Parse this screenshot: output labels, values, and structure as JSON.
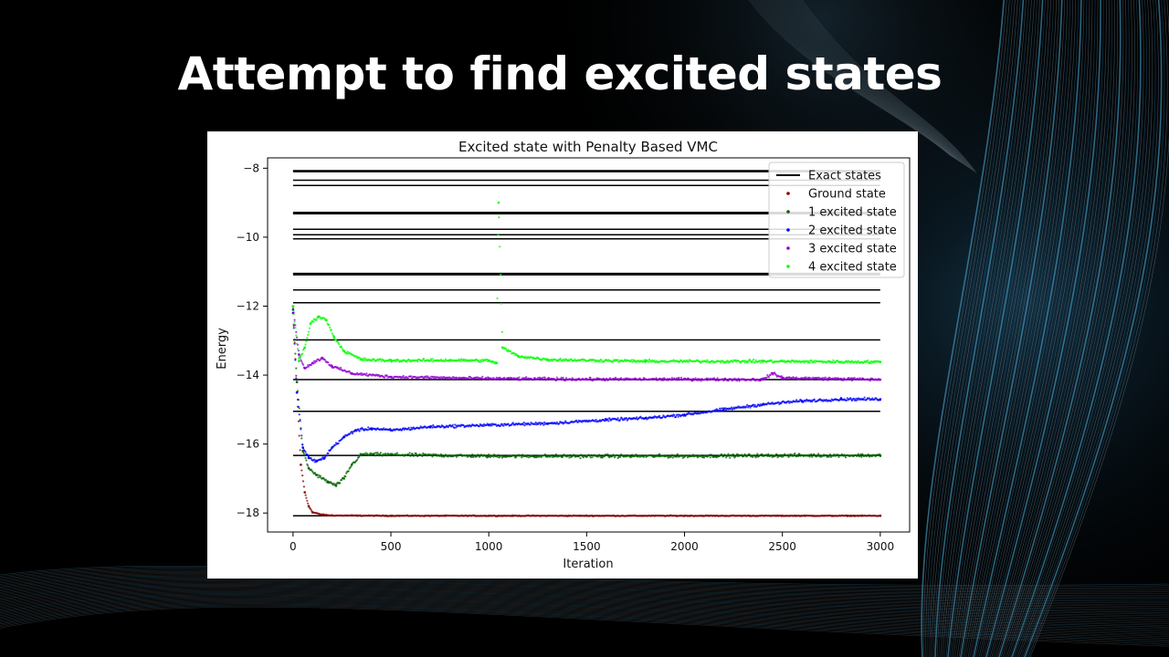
{
  "slide": {
    "title": "Attempt to find excited states"
  },
  "colors": {
    "background": "#000000",
    "title_text": "#ffffff",
    "panel": "#ffffff",
    "exact": "#000000",
    "ground": "#8b0000",
    "excited1": "#006400",
    "excited2": "#0000ff",
    "excited3": "#9400d3",
    "excited4": "#00ff00"
  },
  "chart_data": {
    "type": "scatter",
    "title": "Excited state with Penalty Based VMC",
    "xlabel": "Iteration",
    "ylabel": "Energy",
    "xlim": [
      -130,
      3150
    ],
    "ylim": [
      -18.55,
      -7.7
    ],
    "xticks": [
      0,
      500,
      1000,
      1500,
      2000,
      2500,
      3000
    ],
    "yticks": [
      -8,
      -10,
      -12,
      -14,
      -16,
      -18
    ],
    "grid": false,
    "legend_position": "top-right",
    "exact_states": {
      "name": "Exact states",
      "color": "#000000",
      "x_range": [
        0,
        3000
      ],
      "energies": [
        -8.07,
        -8.1,
        -8.35,
        -8.5,
        -9.28,
        -9.32,
        -9.77,
        -9.93,
        -10.05,
        -11.05,
        -11.09,
        -11.53,
        -11.9,
        -12.98,
        -14.13,
        -15.05,
        -16.33,
        -18.08
      ]
    },
    "series": [
      {
        "name": "Ground state",
        "color": "#8b0000",
        "points": [
          [
            0,
            -12.1
          ],
          [
            20,
            -14.5
          ],
          [
            40,
            -16.6
          ],
          [
            60,
            -17.4
          ],
          [
            80,
            -17.8
          ],
          [
            100,
            -17.98
          ],
          [
            150,
            -18.05
          ],
          [
            200,
            -18.07
          ],
          [
            500,
            -18.08
          ],
          [
            1000,
            -18.08
          ],
          [
            1500,
            -18.08
          ],
          [
            2000,
            -18.08
          ],
          [
            2500,
            -18.08
          ],
          [
            3000,
            -18.08
          ]
        ]
      },
      {
        "name": "1 excited state",
        "color": "#006400",
        "points": [
          [
            0,
            -12.1
          ],
          [
            20,
            -14.2
          ],
          [
            50,
            -16.2
          ],
          [
            80,
            -16.7
          ],
          [
            120,
            -16.9
          ],
          [
            180,
            -17.1
          ],
          [
            220,
            -17.2
          ],
          [
            260,
            -17.0
          ],
          [
            300,
            -16.6
          ],
          [
            350,
            -16.3
          ],
          [
            400,
            -16.3
          ],
          [
            1000,
            -16.35
          ],
          [
            1500,
            -16.35
          ],
          [
            2000,
            -16.35
          ],
          [
            2500,
            -16.33
          ],
          [
            3000,
            -16.33
          ]
        ]
      },
      {
        "name": "2 excited state",
        "color": "#0000ff",
        "points": [
          [
            0,
            -12.2
          ],
          [
            20,
            -14.5
          ],
          [
            50,
            -16.1
          ],
          [
            80,
            -16.4
          ],
          [
            120,
            -16.5
          ],
          [
            160,
            -16.4
          ],
          [
            200,
            -16.1
          ],
          [
            260,
            -15.8
          ],
          [
            320,
            -15.6
          ],
          [
            400,
            -15.55
          ],
          [
            500,
            -15.6
          ],
          [
            700,
            -15.5
          ],
          [
            1000,
            -15.45
          ],
          [
            1300,
            -15.4
          ],
          [
            1600,
            -15.3
          ],
          [
            1800,
            -15.25
          ],
          [
            2000,
            -15.15
          ],
          [
            2200,
            -15.0
          ],
          [
            2400,
            -14.85
          ],
          [
            2600,
            -14.75
          ],
          [
            2800,
            -14.7
          ],
          [
            3000,
            -14.7
          ]
        ]
      },
      {
        "name": "3 excited state",
        "color": "#9400d3",
        "points": [
          [
            0,
            -12.0
          ],
          [
            30,
            -13.4
          ],
          [
            60,
            -13.8
          ],
          [
            100,
            -13.65
          ],
          [
            150,
            -13.5
          ],
          [
            200,
            -13.75
          ],
          [
            300,
            -13.95
          ],
          [
            500,
            -14.05
          ],
          [
            1000,
            -14.1
          ],
          [
            1500,
            -14.12
          ],
          [
            2000,
            -14.12
          ],
          [
            2400,
            -14.13
          ],
          [
            2450,
            -13.95
          ],
          [
            2500,
            -14.08
          ],
          [
            3000,
            -14.13
          ]
        ]
      },
      {
        "name": "4 excited state",
        "color": "#00ff00",
        "points": [
          [
            0,
            -12.0
          ],
          [
            30,
            -13.6
          ],
          [
            60,
            -13.2
          ],
          [
            90,
            -12.5
          ],
          [
            130,
            -12.3
          ],
          [
            170,
            -12.4
          ],
          [
            210,
            -12.9
          ],
          [
            260,
            -13.3
          ],
          [
            350,
            -13.55
          ],
          [
            500,
            -13.58
          ],
          [
            800,
            -13.57
          ],
          [
            1000,
            -13.58
          ],
          [
            1040,
            -13.65
          ],
          [
            1050,
            -9.0
          ],
          [
            1070,
            -13.2
          ],
          [
            1150,
            -13.45
          ],
          [
            1300,
            -13.55
          ],
          [
            1800,
            -13.6
          ],
          [
            2400,
            -13.6
          ],
          [
            3000,
            -13.62
          ]
        ]
      }
    ]
  }
}
